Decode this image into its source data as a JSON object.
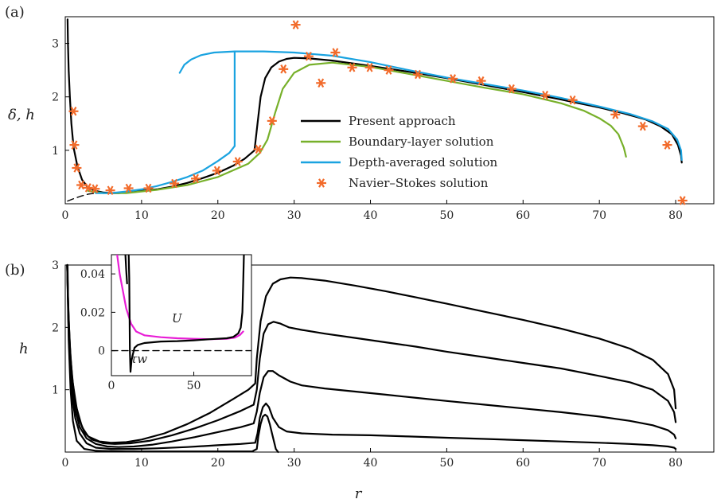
{
  "chart_data": [
    {
      "panel": "(a)",
      "type": "line",
      "ylabel": "δ, h",
      "xlim": [
        0,
        85
      ],
      "ylim": [
        0,
        3.5
      ],
      "xticks": [
        0,
        10,
        20,
        30,
        40,
        50,
        60,
        70,
        80
      ],
      "yticks": [
        1,
        2,
        3
      ],
      "legend_position": "center",
      "series": [
        {
          "name": "Present approach",
          "color": "#000000",
          "x": [
            0.3,
            0.35,
            0.45,
            0.6,
            0.8,
            1.1,
            1.6,
            2.2,
            3,
            4,
            5,
            6,
            7,
            8,
            10,
            12,
            14,
            16,
            18,
            20,
            22,
            23.5,
            24.8,
            25.2,
            25.6,
            26.2,
            27,
            28,
            29,
            30,
            32,
            35,
            38,
            40,
            45,
            50,
            55,
            60,
            65,
            70,
            73,
            76,
            78,
            79.5,
            80.3,
            80.7,
            80.8
          ],
          "y": [
            3.45,
            3.0,
            2.5,
            2.0,
            1.5,
            1.05,
            0.7,
            0.45,
            0.3,
            0.24,
            0.21,
            0.2,
            0.2,
            0.21,
            0.24,
            0.27,
            0.32,
            0.39,
            0.48,
            0.58,
            0.71,
            0.84,
            1.0,
            1.5,
            2.0,
            2.35,
            2.55,
            2.66,
            2.71,
            2.73,
            2.72,
            2.68,
            2.62,
            2.58,
            2.47,
            2.35,
            2.22,
            2.09,
            1.95,
            1.8,
            1.7,
            1.58,
            1.45,
            1.3,
            1.1,
            0.9,
            0.77
          ]
        },
        {
          "name": "",
          "color": "#000000",
          "dash": true,
          "x": [
            0.3,
            1.0,
            2.0,
            3.0,
            4.0,
            5.0
          ],
          "y": [
            0.05,
            0.09,
            0.14,
            0.18,
            0.2,
            0.21
          ]
        },
        {
          "name": "Boundary-layer solution",
          "color": "#77b02a",
          "x": [
            3,
            5,
            8,
            12,
            16,
            20,
            24,
            25.5,
            26.5,
            27.5,
            28.5,
            30,
            32,
            35,
            40,
            45,
            50,
            55,
            60,
            65,
            68,
            70,
            71.5,
            72.5,
            73.2,
            73.5
          ],
          "y": [
            0.24,
            0.2,
            0.2,
            0.26,
            0.35,
            0.5,
            0.75,
            0.95,
            1.2,
            1.7,
            2.15,
            2.45,
            2.6,
            2.64,
            2.56,
            2.43,
            2.3,
            2.17,
            2.05,
            1.88,
            1.74,
            1.6,
            1.46,
            1.3,
            1.05,
            0.88
          ]
        },
        {
          "name": "Depth-averaged solution",
          "color": "#1aa3e0",
          "x": [
            4,
            6,
            8,
            10,
            12,
            14,
            16,
            18,
            20,
            21.5,
            22.2
          ],
          "y": [
            0.2,
            0.2,
            0.23,
            0.27,
            0.33,
            0.41,
            0.5,
            0.62,
            0.8,
            0.95,
            1.08
          ]
        },
        {
          "name": "",
          "color": "#1aa3e0",
          "x": [
            22.2,
            22.2
          ],
          "y": [
            1.08,
            2.85
          ]
        },
        {
          "name": "",
          "color": "#1aa3e0",
          "x": [
            15,
            15.6,
            16.5,
            17.8,
            19.5,
            22.2,
            26,
            30,
            35,
            40,
            45,
            50,
            55,
            60,
            65,
            70,
            74,
            77,
            79,
            80.2,
            80.7,
            80.8
          ],
          "y": [
            2.45,
            2.6,
            2.7,
            2.78,
            2.83,
            2.85,
            2.85,
            2.83,
            2.77,
            2.65,
            2.5,
            2.36,
            2.24,
            2.12,
            1.98,
            1.82,
            1.68,
            1.54,
            1.4,
            1.2,
            1.0,
            0.82
          ]
        },
        {
          "name": "Navier–Stokes solution",
          "color": "#f26b2b",
          "type": "scatter",
          "x": [
            1.1,
            1.2,
            1.5,
            2.1,
            3.0,
            3.9,
            5.9,
            8.3,
            10.9,
            14.3,
            17.1,
            19.9,
            22.6,
            25.3,
            27.1,
            28.6,
            30.2,
            31.9,
            33.5,
            35.4,
            37.6,
            39.9,
            42.4,
            46.2,
            50.8,
            54.5,
            58.5,
            62.9,
            66.5,
            72.1,
            75.7,
            78.9,
            80.9
          ],
          "y": [
            1.73,
            1.1,
            0.67,
            0.35,
            0.3,
            0.28,
            0.25,
            0.29,
            0.29,
            0.38,
            0.47,
            0.62,
            0.79,
            1.02,
            1.55,
            2.52,
            3.35,
            2.76,
            2.26,
            2.83,
            2.55,
            2.55,
            2.5,
            2.42,
            2.34,
            2.3,
            2.15,
            2.03,
            1.94,
            1.67,
            1.45,
            1.1,
            0.06
          ]
        }
      ]
    },
    {
      "panel": "(b)",
      "type": "line",
      "xlabel": "r",
      "ylabel": "h",
      "xlim": [
        0,
        85
      ],
      "ylim": [
        0,
        3.0
      ],
      "xticks": [
        0,
        10,
        20,
        30,
        40,
        50,
        60,
        70,
        80
      ],
      "yticks": [
        1,
        2,
        3
      ],
      "series": [
        {
          "name": "",
          "color": "#000000",
          "x": [
            0.25,
            0.35,
            0.5,
            0.7,
            1.0,
            1.5,
            2.2,
            3,
            4.5,
            6,
            8,
            10,
            13,
            16,
            19,
            22,
            24,
            24.9,
            25.1,
            25.6,
            26.3,
            27.2,
            28.2,
            29.5,
            31,
            34,
            38,
            42,
            46,
            50,
            55,
            60,
            65,
            70,
            74,
            77,
            79,
            79.8,
            80
          ],
          "y": [
            3.0,
            2.5,
            2.0,
            1.5,
            1.1,
            0.7,
            0.4,
            0.25,
            0.17,
            0.15,
            0.16,
            0.2,
            0.3,
            0.45,
            0.63,
            0.85,
            1.0,
            1.1,
            1.5,
            2.1,
            2.5,
            2.7,
            2.77,
            2.8,
            2.79,
            2.75,
            2.67,
            2.58,
            2.48,
            2.38,
            2.25,
            2.12,
            1.98,
            1.82,
            1.66,
            1.48,
            1.25,
            1.0,
            0.7
          ]
        },
        {
          "name": "",
          "color": "#000000",
          "x": [
            0.25,
            0.4,
            0.6,
            0.9,
            1.3,
            1.9,
            2.6,
            3.5,
            5,
            6.5,
            8.5,
            11,
            14,
            17,
            20,
            23,
            24.7,
            25.1,
            25.5,
            26,
            26.6,
            27.3,
            28.2,
            29.3,
            31,
            34,
            38,
            42,
            46,
            50,
            55,
            60,
            65,
            70,
            74,
            77,
            79,
            79.8,
            80
          ],
          "y": [
            3.0,
            2.3,
            1.7,
            1.2,
            0.8,
            0.5,
            0.3,
            0.2,
            0.14,
            0.13,
            0.14,
            0.18,
            0.27,
            0.38,
            0.51,
            0.66,
            0.76,
            1.0,
            1.5,
            1.9,
            2.05,
            2.09,
            2.06,
            2.0,
            1.96,
            1.9,
            1.83,
            1.76,
            1.69,
            1.61,
            1.52,
            1.43,
            1.34,
            1.22,
            1.12,
            1.0,
            0.82,
            0.64,
            0.48
          ]
        },
        {
          "name": "",
          "color": "#000000",
          "x": [
            0.25,
            0.4,
            0.6,
            0.9,
            1.3,
            1.9,
            2.8,
            4,
            5.5,
            7,
            9,
            11.5,
            14,
            17,
            20,
            23,
            24.7,
            25.1,
            25.5,
            26,
            26.6,
            27.2,
            28,
            29.5,
            31,
            34,
            38,
            42,
            46,
            50,
            55,
            60,
            65,
            70,
            74,
            77,
            79,
            79.8,
            80
          ],
          "y": [
            3.0,
            2.2,
            1.55,
            1.05,
            0.68,
            0.4,
            0.22,
            0.13,
            0.09,
            0.08,
            0.09,
            0.12,
            0.17,
            0.24,
            0.32,
            0.4,
            0.46,
            0.65,
            0.95,
            1.2,
            1.3,
            1.3,
            1.23,
            1.13,
            1.07,
            1.02,
            0.97,
            0.92,
            0.87,
            0.82,
            0.76,
            0.7,
            0.64,
            0.57,
            0.5,
            0.43,
            0.35,
            0.28,
            0.22
          ]
        },
        {
          "name": "",
          "color": "#000000",
          "x": [
            0.25,
            0.4,
            0.6,
            0.9,
            1.3,
            1.9,
            2.8,
            4,
            6,
            9,
            12,
            16,
            20,
            23,
            24.9,
            25.2,
            25.5,
            25.9,
            26.3,
            26.7,
            27.2,
            28,
            29,
            31,
            35,
            40,
            45,
            50,
            55,
            60,
            65,
            70,
            74,
            77,
            79,
            79.8,
            80
          ],
          "y": [
            3.0,
            2.1,
            1.4,
            0.9,
            0.55,
            0.3,
            0.14,
            0.07,
            0.05,
            0.05,
            0.06,
            0.08,
            0.11,
            0.13,
            0.15,
            0.3,
            0.55,
            0.72,
            0.78,
            0.72,
            0.55,
            0.4,
            0.33,
            0.3,
            0.28,
            0.27,
            0.25,
            0.23,
            0.21,
            0.19,
            0.17,
            0.15,
            0.13,
            0.11,
            0.09,
            0.07,
            0.05
          ]
        },
        {
          "name": "",
          "color": "#000000",
          "x": [
            0.3,
            0.45,
            0.7,
            1.0,
            1.5,
            2.5,
            4,
            8,
            12,
            18,
            22,
            24.5,
            25.1,
            25.3,
            25.6,
            25.9,
            26.2,
            26.5,
            26.8,
            27.1,
            27.4,
            27.6,
            27.9
          ],
          "y": [
            3.0,
            1.8,
            1.0,
            0.5,
            0.18,
            0.05,
            0.02,
            0.01,
            0.01,
            0.01,
            0.01,
            0.01,
            0.05,
            0.25,
            0.45,
            0.57,
            0.6,
            0.57,
            0.45,
            0.3,
            0.15,
            0.05,
            0.0
          ]
        }
      ]
    },
    {
      "panel": "(b) inset",
      "type": "line",
      "xlim": [
        0,
        85
      ],
      "ylim": [
        -0.013,
        0.05
      ],
      "xticks": [
        0,
        50
      ],
      "yticks": [
        0,
        0.02,
        0.04
      ],
      "ytick_labels": [
        "0",
        "0.02",
        "0.04"
      ],
      "annotations": [
        "τw",
        "U"
      ],
      "series": [
        {
          "name": "",
          "color": "#e81ed6",
          "x": [
            3.5,
            5,
            7,
            9,
            12,
            15,
            20,
            30,
            40,
            50,
            60,
            70,
            75,
            78,
            80
          ],
          "y": [
            0.05,
            0.04,
            0.031,
            0.022,
            0.014,
            0.01,
            0.008,
            0.007,
            0.0065,
            0.0062,
            0.006,
            0.0062,
            0.0068,
            0.0082,
            0.01
          ]
        },
        {
          "name": "",
          "color": "#000000",
          "x": [
            8.5,
            9.0,
            9.5
          ],
          "y": [
            0.05,
            0.042,
            0.035
          ]
        },
        {
          "name": "",
          "color": "#000000",
          "x": [
            10.5,
            10.8,
            11.0,
            11.2,
            11.6,
            12.2,
            13,
            14,
            16,
            20,
            30,
            40,
            50,
            60,
            70,
            74,
            77,
            78.5,
            79.5,
            80,
            80.4
          ],
          "y": [
            0.05,
            0.038,
            0.02,
            0.0,
            -0.011,
            -0.005,
            -0.002,
            0.0015,
            0.003,
            0.004,
            0.0048,
            0.005,
            0.0054,
            0.006,
            0.0065,
            0.0072,
            0.009,
            0.012,
            0.02,
            0.035,
            0.05
          ]
        },
        {
          "name": "",
          "color": "#000000",
          "dash": true,
          "x": [
            0,
            85
          ],
          "y": [
            0,
            0
          ]
        }
      ]
    }
  ]
}
